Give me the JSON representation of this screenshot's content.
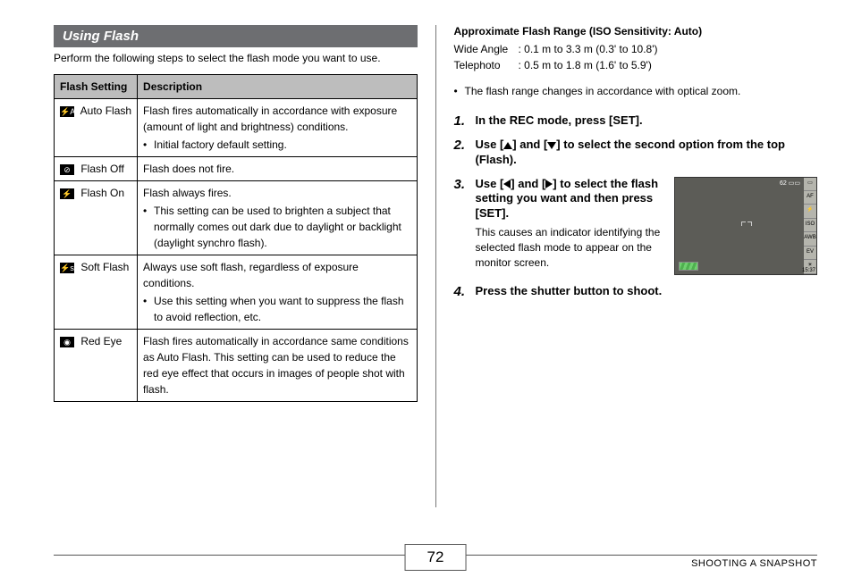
{
  "section_title": "Using Flash",
  "intro": "Perform the following steps to select the flash mode you want to use.",
  "table": {
    "headers": [
      "Flash Setting",
      "Description"
    ],
    "rows": [
      {
        "icon": "⚡A",
        "name": "Auto Flash",
        "desc": "Flash fires automatically in accordance with exposure (amount of light and brightness) conditions.",
        "bullet": "Initial factory default setting."
      },
      {
        "icon": "⊘",
        "name": "Flash Off",
        "desc": "Flash does not fire."
      },
      {
        "icon": "⚡",
        "name": "Flash On",
        "desc": "Flash always fires.",
        "bullet": "This setting can be used to brighten a subject that normally comes out dark due to daylight or backlight (daylight synchro flash)."
      },
      {
        "icon": "⚡s",
        "name": "Soft Flash",
        "desc": "Always use soft flash, regardless of exposure conditions.",
        "bullet": "Use this setting when you want to suppress the flash to avoid reflection, etc."
      },
      {
        "icon": "◉",
        "name": "Red Eye",
        "desc": "Flash fires automatically in accordance same conditions as Auto Flash. This setting can be used to reduce the red eye effect that occurs in images of people shot with flash."
      }
    ]
  },
  "right": {
    "heading": "Approximate Flash Range (ISO Sensitivity: Auto)",
    "spec1_label": "Wide Angle",
    "spec1_val": ": 0.1 m to 3.3 m (0.3' to 10.8')",
    "spec2_label": "Telephoto",
    "spec2_val": ": 0.5 m to 1.8 m (1.6' to 5.9')",
    "note": "The flash range changes in accordance with optical zoom.",
    "steps": [
      {
        "title_pre": "In the REC mode, press [SET]."
      },
      {
        "title_pre": "Use [",
        "title_mid": "] and [",
        "title_post": "] to select the second option from the top (Flash)."
      },
      {
        "title_pre": "Use [",
        "title_mid": "] and [",
        "title_post": "] to select the flash setting you want and then press [SET].",
        "desc": "This causes an indicator identifying the selected flash mode to appear on the monitor screen."
      },
      {
        "title_pre": "Press the shutter button to shoot."
      }
    ],
    "lcd": {
      "counter": "62",
      "side": [
        "▭",
        "AF",
        "⚡",
        "ISO",
        "AWB",
        "EV",
        "☀"
      ],
      "time": "15:37"
    }
  },
  "footer": {
    "page": "72",
    "label": "SHOOTING A SNAPSHOT"
  }
}
